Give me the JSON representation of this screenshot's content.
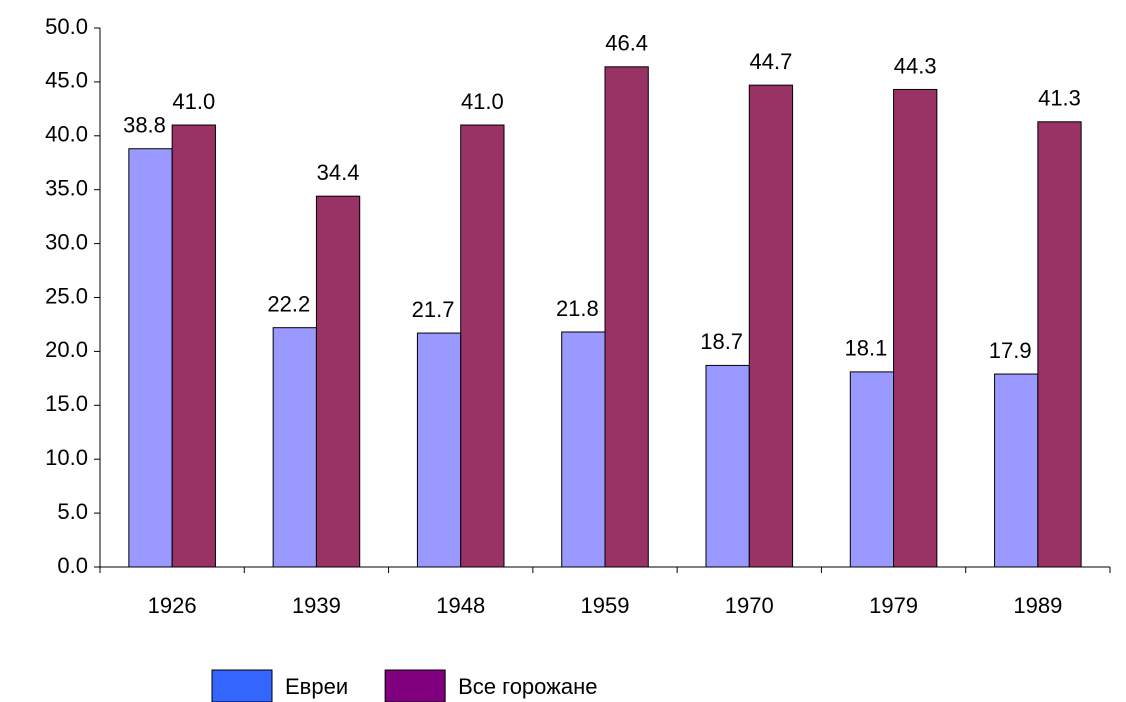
{
  "chart_data": {
    "type": "bar",
    "categories": [
      "1926",
      "1939",
      "1948",
      "1959",
      "1970",
      "1979",
      "1989"
    ],
    "series": [
      {
        "name": "Евреи",
        "color": "#9999ff",
        "legend_color": "#3366ff",
        "values": [
          38.8,
          22.2,
          21.7,
          21.8,
          18.7,
          18.1,
          17.9
        ],
        "value_labels": [
          "38.8",
          "22.2",
          "21.7",
          "21.8",
          "18.7",
          "18.1",
          "17.9"
        ]
      },
      {
        "name": "Все горожане",
        "color": "#993366",
        "legend_color": "#800080",
        "values": [
          41.0,
          34.4,
          41.0,
          46.4,
          44.7,
          44.3,
          41.3
        ],
        "value_labels": [
          "41.0",
          "34.4",
          "41.0",
          "46.4",
          "44.7",
          "44.3",
          "41.3"
        ]
      }
    ],
    "ylim": [
      0,
      50
    ],
    "yticks": [
      {
        "value": 0,
        "label": "0.0"
      },
      {
        "value": 5,
        "label": "5.0"
      },
      {
        "value": 10,
        "label": "10.0"
      },
      {
        "value": 15,
        "label": "15.0"
      },
      {
        "value": 20,
        "label": "20.0"
      },
      {
        "value": 25,
        "label": "25.0"
      },
      {
        "value": 30,
        "label": "30.0"
      },
      {
        "value": 35,
        "label": "35.0"
      },
      {
        "value": 40,
        "label": "40.0"
      },
      {
        "value": 45,
        "label": "45.0"
      },
      {
        "value": 50,
        "label": "50.0"
      }
    ],
    "grid": false
  }
}
